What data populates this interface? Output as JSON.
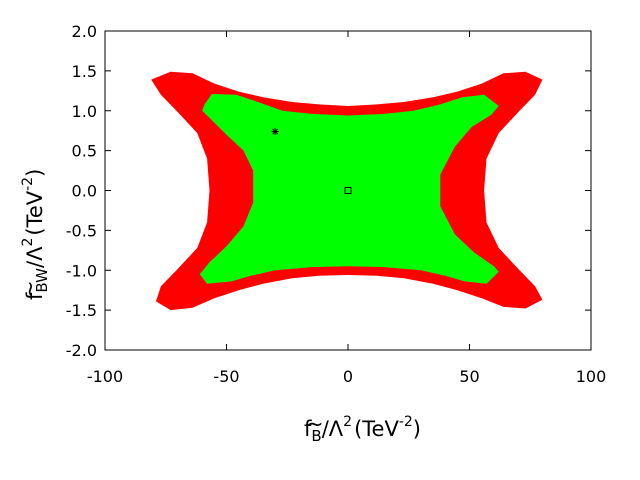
{
  "chart_data": {
    "type": "area",
    "title": "",
    "xlabel": {
      "tilde_char": "~",
      "f": "f",
      "sub": "B",
      "over": "/Λ",
      "pow": "2",
      "unit_open": "(TeV",
      "unit_pow": "-2",
      "unit_close": ")"
    },
    "ylabel": {
      "tilde_char": "~",
      "f": "f",
      "sub": "BW",
      "over": "/Λ",
      "pow": "2",
      "unit_open": "(TeV",
      "unit_pow": "-2",
      "unit_close": ")"
    },
    "xlim": [
      -100,
      100
    ],
    "ylim": [
      -2.0,
      2.0
    ],
    "xticks": [
      -100,
      -50,
      0,
      50,
      100
    ],
    "xtick_labels": [
      "-100",
      "-50",
      "0",
      "50",
      "100"
    ],
    "yticks": [
      -2.0,
      -1.5,
      -1.0,
      -0.5,
      0.0,
      0.5,
      1.0,
      1.5,
      2.0
    ],
    "ytick_labels": [
      "-2.0",
      "-1.5",
      "-1.0",
      "-0.5",
      "0.0",
      "0.5",
      "1.0",
      "1.5",
      "2.0"
    ],
    "grid": false,
    "colors": {
      "outer": "#ff0000",
      "inner": "#00ff00"
    },
    "regions": [
      {
        "color_key": "outer",
        "boundary": [
          [
            -81,
            1.39
          ],
          [
            -73,
            1.49
          ],
          [
            -64,
            1.47
          ],
          [
            -55,
            1.34
          ],
          [
            -45,
            1.24
          ],
          [
            -35,
            1.17
          ],
          [
            -23,
            1.11
          ],
          [
            -12,
            1.08
          ],
          [
            0,
            1.06
          ],
          [
            12,
            1.08
          ],
          [
            23,
            1.11
          ],
          [
            35,
            1.17
          ],
          [
            45,
            1.24
          ],
          [
            55,
            1.34
          ],
          [
            64,
            1.47
          ],
          [
            73,
            1.49
          ],
          [
            80,
            1.39
          ],
          [
            77,
            1.2
          ],
          [
            70,
            0.98
          ],
          [
            62,
            0.72
          ],
          [
            57,
            0.4
          ],
          [
            56,
            0.0
          ],
          [
            57,
            -0.4
          ],
          [
            62,
            -0.72
          ],
          [
            70,
            -0.98
          ],
          [
            77,
            -1.2
          ],
          [
            80,
            -1.37
          ],
          [
            73,
            -1.48
          ],
          [
            64,
            -1.46
          ],
          [
            55,
            -1.35
          ],
          [
            45,
            -1.25
          ],
          [
            35,
            -1.17
          ],
          [
            23,
            -1.1
          ],
          [
            12,
            -1.07
          ],
          [
            0,
            -1.06
          ],
          [
            -12,
            -1.07
          ],
          [
            -23,
            -1.1
          ],
          [
            -35,
            -1.17
          ],
          [
            -45,
            -1.25
          ],
          [
            -55,
            -1.35
          ],
          [
            -64,
            -1.47
          ],
          [
            -73,
            -1.5
          ],
          [
            -79,
            -1.39
          ],
          [
            -77,
            -1.2
          ],
          [
            -70,
            -0.98
          ],
          [
            -62,
            -0.72
          ],
          [
            -58,
            -0.4
          ],
          [
            -57,
            0.0
          ],
          [
            -58,
            0.4
          ],
          [
            -62,
            0.72
          ],
          [
            -70,
            0.98
          ],
          [
            -77,
            1.2
          ]
        ]
      },
      {
        "color_key": "inner",
        "boundary": [
          [
            -59,
            1.08
          ],
          [
            -56,
            1.21
          ],
          [
            -46,
            1.2
          ],
          [
            -38,
            1.12
          ],
          [
            -27,
            1.0
          ],
          [
            -15,
            0.96
          ],
          [
            0,
            0.94
          ],
          [
            15,
            0.96
          ],
          [
            27,
            1.0
          ],
          [
            38,
            1.08
          ],
          [
            47,
            1.17
          ],
          [
            56,
            1.2
          ],
          [
            62,
            1.06
          ],
          [
            59,
            0.95
          ],
          [
            51,
            0.8
          ],
          [
            44,
            0.55
          ],
          [
            38,
            0.2
          ],
          [
            38,
            0.0
          ],
          [
            38,
            -0.2
          ],
          [
            44,
            -0.55
          ],
          [
            52,
            -0.78
          ],
          [
            60,
            -0.95
          ],
          [
            62,
            -1.02
          ],
          [
            57,
            -1.17
          ],
          [
            48,
            -1.14
          ],
          [
            40,
            -1.07
          ],
          [
            30,
            -1.0
          ],
          [
            15,
            -0.96
          ],
          [
            0,
            -0.95
          ],
          [
            -15,
            -0.96
          ],
          [
            -30,
            -1.0
          ],
          [
            -40,
            -1.07
          ],
          [
            -48,
            -1.14
          ],
          [
            -58,
            -1.17
          ],
          [
            -61,
            -1.05
          ],
          [
            -57,
            -0.9
          ],
          [
            -50,
            -0.7
          ],
          [
            -43,
            -0.45
          ],
          [
            -39,
            -0.15
          ],
          [
            -39,
            0.0
          ],
          [
            -39,
            0.25
          ],
          [
            -43,
            0.5
          ],
          [
            -50,
            0.7
          ],
          [
            -56,
            0.88
          ],
          [
            -60,
            1.0
          ]
        ]
      }
    ],
    "markers": [
      {
        "name": "star-marker",
        "shape": "star",
        "x": -30,
        "y": 0.74
      },
      {
        "name": "square-marker",
        "shape": "square",
        "x": 0,
        "y": 0.0
      }
    ]
  }
}
